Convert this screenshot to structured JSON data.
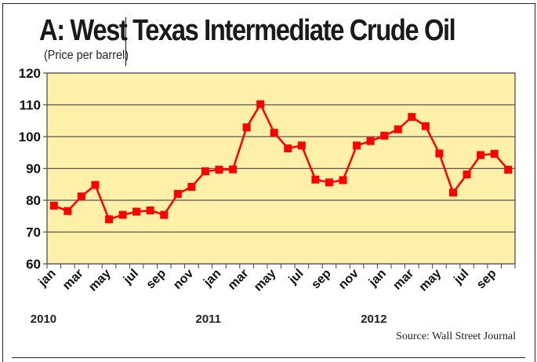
{
  "title": "A: West Texas Intermediate Crude Oil",
  "subtitle": "(Price per barrel)",
  "source": "Source: Wall Street Journal",
  "colors": {
    "plot_bg": "#FEF0A8",
    "line": "#FF0000",
    "marker": "#FF0000",
    "grid": "#555555"
  },
  "chart_data": {
    "type": "line",
    "title": "A: West Texas Intermediate Crude Oil",
    "subtitle": "(Price per barrel)",
    "xlabel": "",
    "ylabel": "",
    "ylim": [
      60,
      120
    ],
    "yticks": [
      60,
      70,
      80,
      90,
      100,
      110,
      120
    ],
    "grid": true,
    "legend": null,
    "x_tick_labels": [
      "jan",
      "mar",
      "may",
      "jul",
      "sep",
      "nov",
      "jan",
      "mar",
      "may",
      "jul",
      "sep",
      "nov",
      "jan",
      "mar",
      "may",
      "jul",
      "sep"
    ],
    "year_labels": [
      {
        "label": "2010",
        "at_index": 0
      },
      {
        "label": "2011",
        "at_index": 12
      },
      {
        "label": "2012",
        "at_index": 24
      }
    ],
    "categories": [
      "Jan 2010",
      "Feb 2010",
      "Mar 2010",
      "Apr 2010",
      "May 2010",
      "Jun 2010",
      "Jul 2010",
      "Aug 2010",
      "Sep 2010",
      "Oct 2010",
      "Nov 2010",
      "Dec 2010",
      "Jan 2011",
      "Feb 2011",
      "Mar 2011",
      "Apr 2011",
      "May 2011",
      "Jun 2011",
      "Jul 2011",
      "Aug 2011",
      "Sep 2011",
      "Oct 2011",
      "Nov 2011",
      "Dec 2011",
      "Jan 2012",
      "Feb 2012",
      "Mar 2012",
      "Apr 2012",
      "May 2012",
      "Jun 2012",
      "Jul 2012",
      "Aug 2012",
      "Sep 2012",
      "Oct 2012"
    ],
    "series": [
      {
        "name": "WTI crude oil price",
        "values": [
          78.3,
          76.6,
          81.2,
          84.8,
          74.0,
          75.4,
          76.4,
          76.8,
          75.4,
          82.0,
          84.2,
          89.1,
          89.6,
          89.7,
          102.9,
          110.2,
          101.2,
          96.3,
          97.2,
          86.5,
          85.6,
          86.3,
          97.2,
          98.6,
          100.3,
          102.3,
          106.2,
          103.3,
          94.7,
          82.4,
          88.1,
          94.2,
          94.6,
          89.6
        ]
      }
    ],
    "source": "Source: Wall Street Journal"
  }
}
